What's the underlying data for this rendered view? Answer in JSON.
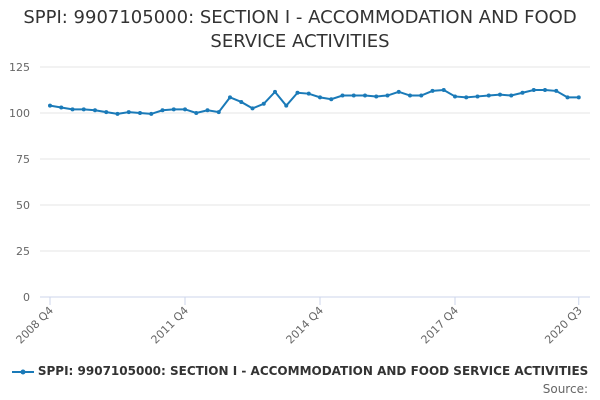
{
  "chart_data": {
    "type": "line",
    "title": "SPPI: 9907105000: SECTION I - ACCOMMODATION AND FOOD SERVICE ACTIVITIES",
    "categories": [
      "2008 Q4",
      null,
      null,
      null,
      null,
      null,
      null,
      null,
      null,
      null,
      null,
      null,
      "2011 Q4",
      null,
      null,
      null,
      null,
      null,
      null,
      null,
      null,
      null,
      null,
      null,
      "2014 Q4",
      null,
      null,
      null,
      null,
      null,
      null,
      null,
      null,
      null,
      null,
      null,
      "2017 Q4",
      null,
      null,
      null,
      null,
      null,
      null,
      null,
      null,
      null,
      null,
      "2020 Q3"
    ],
    "series": [
      {
        "name": "SPPI: 9907105000: SECTION I - ACCOMMODATION AND FOOD SERVICE ACTIVITIES",
        "color": "#1a7ab8",
        "values": [
          104,
          103,
          102,
          102,
          101.5,
          100.5,
          99.5,
          100.5,
          100,
          99.5,
          101.5,
          102,
          102,
          100,
          101.5,
          100.5,
          108.5,
          106,
          102.5,
          105,
          111.5,
          104,
          111,
          110.5,
          108.5,
          107.5,
          109.5,
          109.5,
          109.5,
          109,
          109.5,
          111.5,
          109.5,
          109.5,
          112,
          112.5,
          109,
          108.5,
          109,
          109.5,
          110,
          109.5,
          111,
          112.5,
          112.5,
          112,
          108.5,
          108.5
        ]
      }
    ],
    "ylim": [
      0,
      125
    ],
    "yticks": [
      0,
      25,
      50,
      75,
      100,
      125
    ],
    "grid": true,
    "source_label": "Source:"
  }
}
